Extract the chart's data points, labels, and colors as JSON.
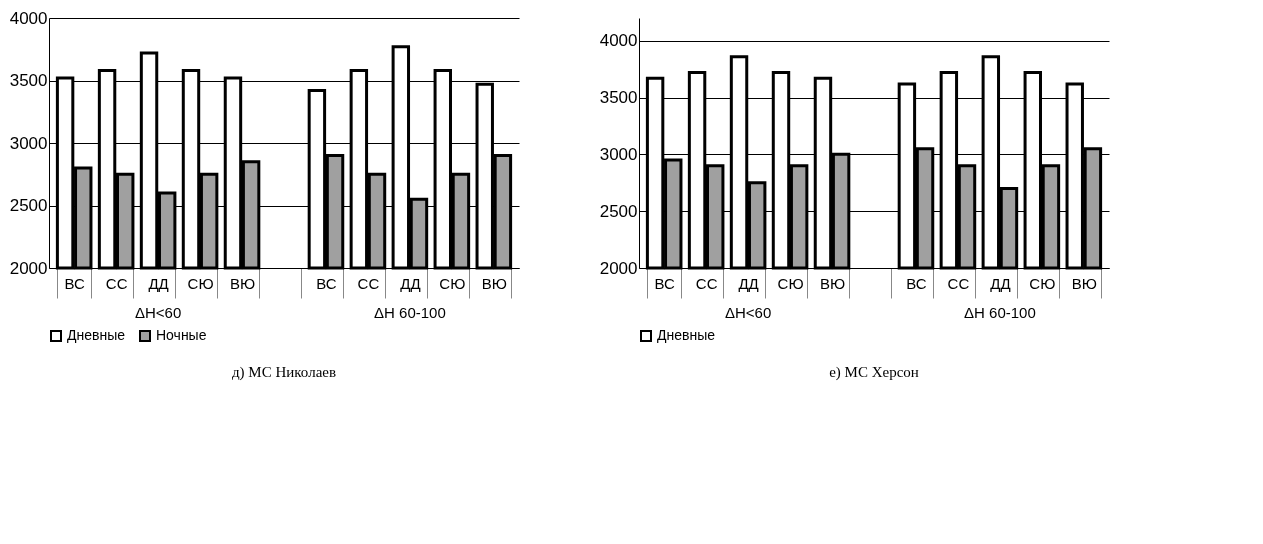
{
  "chart_data": [
    {
      "type": "bar",
      "title": "д) МС Николаев",
      "categories": [
        "ВС",
        "СС",
        "ДД",
        "СЮ",
        "ВЮ",
        null,
        "ВС",
        "СС",
        "ДД",
        "СЮ",
        "ВЮ"
      ],
      "annotations": [
        "ΔН<60",
        "ΔН 60-100"
      ],
      "ylim": [
        2000,
        4000
      ],
      "yticks": [
        2000,
        2500,
        3000,
        3500,
        4000
      ],
      "grid": "y",
      "legend": "bottom",
      "series": [
        {
          "name": "Дневные",
          "color": "#ffffff",
          "values": [
            3520,
            3580,
            3720,
            3580,
            3520,
            null,
            3420,
            3580,
            3770,
            3580,
            3470
          ]
        },
        {
          "name": "Ночные",
          "color": "#a0a0a0",
          "values": [
            2800,
            2750,
            2600,
            2750,
            2850,
            null,
            2900,
            2750,
            2550,
            2750,
            2900
          ]
        }
      ]
    },
    {
      "type": "bar",
      "title": "е) МС Херсон",
      "categories": [
        "ВС",
        "СС",
        "ДД",
        "СЮ",
        "ВЮ",
        null,
        "ВС",
        "СС",
        "ДД",
        "СЮ",
        "ВЮ"
      ],
      "annotations": [
        "ΔН<60",
        "ΔН 60-100"
      ],
      "ylim": [
        2000,
        4200
      ],
      "yticks": [
        2000,
        2500,
        3000,
        3500,
        4000
      ],
      "grid": "y",
      "legend": "bottom",
      "series": [
        {
          "name": "Дневные",
          "color": "#ffffff",
          "values": [
            3670,
            3720,
            3860,
            3720,
            3670,
            null,
            3620,
            3720,
            3860,
            3720,
            3620
          ]
        },
        {
          "color": "#a0a0a0",
          "values": [
            2950,
            2900,
            2750,
            2900,
            3000,
            null,
            3050,
            2900,
            2700,
            2900,
            3050
          ]
        }
      ]
    }
  ]
}
